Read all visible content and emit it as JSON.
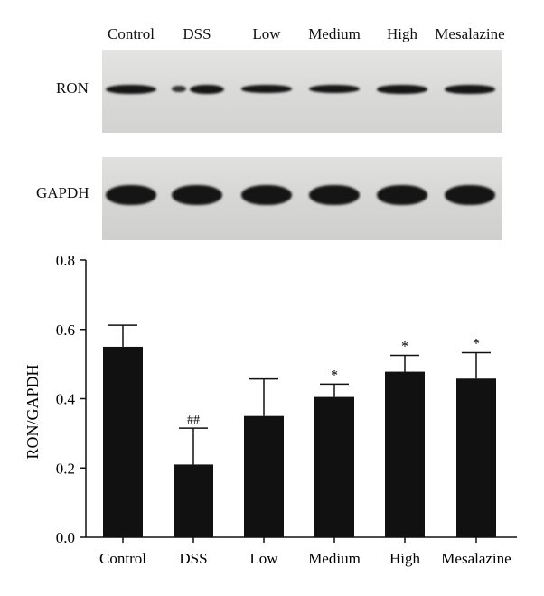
{
  "blot": {
    "lanes": [
      "Control",
      "DSS",
      "Low",
      "Medium",
      "High",
      "Mesalazine"
    ],
    "rows": [
      {
        "label": "RON",
        "intensity": [
          1.0,
          0.55,
          0.85,
          0.9,
          0.95,
          0.95
        ]
      },
      {
        "label": "GAPDH",
        "intensity": [
          1.0,
          1.0,
          1.0,
          1.0,
          1.0,
          1.0
        ]
      }
    ]
  },
  "chart_data": {
    "type": "bar",
    "categories": [
      "Control",
      "DSS",
      "Low",
      "Medium",
      "High",
      "Mesalazine"
    ],
    "values": [
      0.55,
      0.21,
      0.35,
      0.405,
      0.478,
      0.458
    ],
    "errors": [
      0.062,
      0.105,
      0.107,
      0.037,
      0.047,
      0.075
    ],
    "annotations": [
      "",
      "##",
      "",
      "*",
      "*",
      "*"
    ],
    "ylabel": "RON/GAPDH",
    "xlabel": "",
    "ylim": [
      0,
      0.8
    ],
    "yticks": [
      "0.0",
      "0.2",
      "0.4",
      "0.6",
      "0.8"
    ],
    "bar_color": "#111111",
    "grid": false
  }
}
